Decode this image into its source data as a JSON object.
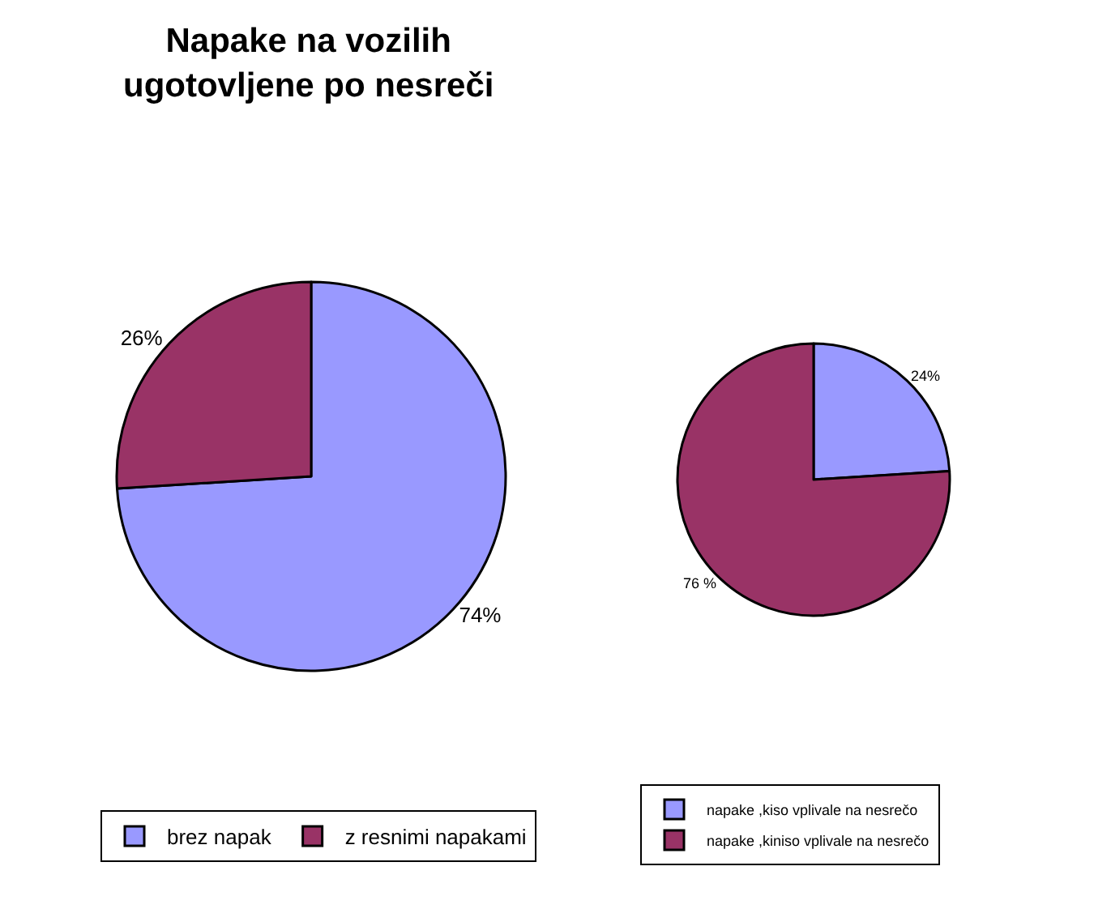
{
  "chart_data": [
    {
      "type": "pie",
      "title": "Napake na vozilih\nugotovljene po nesreči",
      "categories": [
        "brez napak",
        "z resnimi napakami"
      ],
      "values": [
        74,
        26
      ],
      "value_labels": [
        "74%",
        "26%"
      ],
      "colors": [
        "#9999ff",
        "#993366"
      ],
      "legend": "bottom"
    },
    {
      "type": "pie",
      "categories": [
        "napake ,kiso vplivale na nesrečo",
        "napake ,kiniso vplivale na nesrečo"
      ],
      "values": [
        24,
        76
      ],
      "value_labels": [
        "24%",
        "76 %"
      ],
      "colors": [
        "#9999ff",
        "#993366"
      ],
      "legend": "bottom"
    }
  ]
}
